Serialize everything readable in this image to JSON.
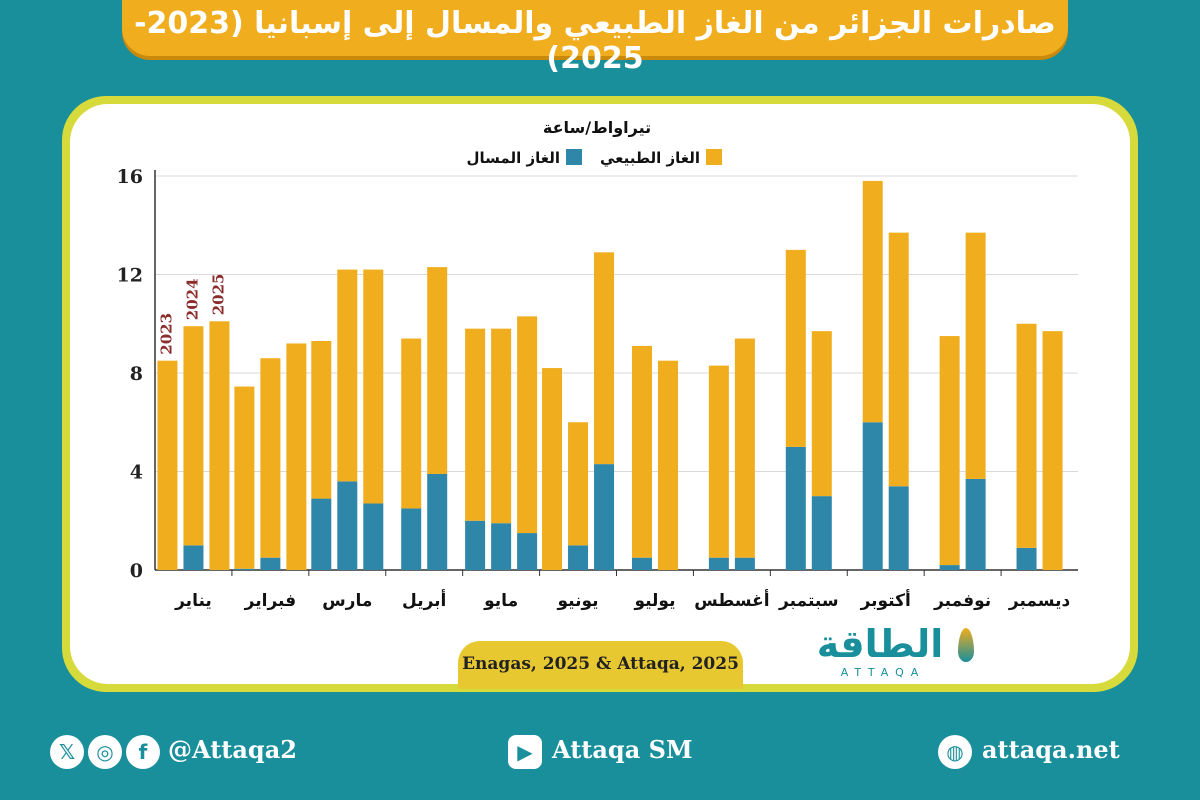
{
  "title": "صادرات الجزائر من الغاز الطبيعي والمسال إلى إسبانيا (2023-2025)",
  "source": "Enagas, 2025 & Attaqa, 2025",
  "logo": {
    "arabic": "الطاقة",
    "english": "ATTAQA"
  },
  "footer": {
    "social_handle": "@Attaqa2",
    "youtube": "Attaqa SM",
    "website": "attaqa.net",
    "icons": [
      "x-icon",
      "instagram-icon",
      "facebook-icon",
      "youtube-icon",
      "globe-icon"
    ]
  },
  "colors": {
    "background": "#1a8f9c",
    "pipeline": "#f0ad1e",
    "lng": "#2e86a8",
    "card_border": "#d6da3a",
    "title_bar": "#f0ad1e"
  },
  "chart_data": {
    "type": "bar",
    "stacked": true,
    "unit_label": "تيراواط/ساعة",
    "ylim": [
      0,
      16
    ],
    "yticks": [
      0,
      4,
      8,
      12,
      16
    ],
    "grid": true,
    "legend_position": "top",
    "legend": [
      {
        "name": "الغاز الطبيعي",
        "color": "#f0ad1e"
      },
      {
        "name": "الغاز المسال",
        "color": "#2e86a8"
      }
    ],
    "months": [
      "يناير",
      "فبراير",
      "مارس",
      "أبريل",
      "مايو",
      "يونيو",
      "يوليو",
      "أغسطس",
      "سبتمبر",
      "أكتوبر",
      "نوفمبر",
      "ديسمبر"
    ],
    "year_labels": [
      "2023",
      "2024",
      "2025"
    ],
    "series": [
      {
        "name": "الغاز المسال",
        "key": "lng",
        "values": [
          [
            0.0,
            1.0,
            0.0
          ],
          [
            0.05,
            0.5,
            0.0
          ],
          [
            2.9,
            3.6,
            2.7
          ],
          [
            2.5,
            3.9,
            null
          ],
          [
            2.0,
            1.9,
            1.5
          ],
          [
            0.0,
            1.0,
            4.3
          ],
          [
            0.5,
            0.0,
            null
          ],
          [
            0.5,
            0.5,
            null
          ],
          [
            5.0,
            3.0,
            null
          ],
          [
            6.0,
            3.4,
            null
          ],
          [
            0.2,
            3.7,
            null
          ],
          [
            0.9,
            0.0,
            null
          ]
        ]
      },
      {
        "name": "الغاز الطبيعي",
        "key": "pipeline",
        "values": [
          [
            8.5,
            8.9,
            10.1
          ],
          [
            7.4,
            8.1,
            9.2
          ],
          [
            6.4,
            8.6,
            9.5
          ],
          [
            6.9,
            8.4,
            null
          ],
          [
            7.8,
            7.9,
            8.8
          ],
          [
            8.2,
            5.0,
            8.6
          ],
          [
            8.6,
            8.5,
            null
          ],
          [
            7.8,
            8.9,
            null
          ],
          [
            8.0,
            6.7,
            null
          ],
          [
            9.8,
            10.3,
            null
          ],
          [
            9.3,
            10.0,
            null
          ],
          [
            9.1,
            9.7,
            null
          ]
        ]
      }
    ]
  }
}
